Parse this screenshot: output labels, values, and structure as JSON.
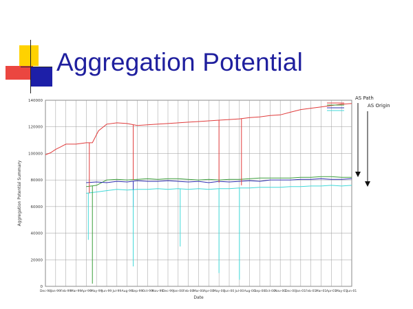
{
  "slide": {
    "title": "Aggregation Potential"
  },
  "chart_data": {
    "type": "line",
    "title": "",
    "xlabel": "Date",
    "ylabel": "Aggregation Potential Summary",
    "ylim": [
      0,
      140000
    ],
    "y_ticks": [
      "0",
      "20000",
      "40000",
      "60000",
      "80000",
      "100000",
      "120000",
      "140000"
    ],
    "x_ticks": [
      "Dec-98",
      "Jan-99",
      "Feb-99",
      "Mar-99",
      "Apr-99",
      "May-99",
      "Jun-99",
      "Jul-99",
      "Aug-99",
      "Sep-99",
      "Oct-99",
      "Nov-99",
      "Dec-99",
      "Jan-00",
      "Feb-00",
      "Mar-00",
      "Apr-00",
      "May-00",
      "Jun-00",
      "Jul-00",
      "Aug-00",
      "Sep-00",
      "Oct-00",
      "Nov-00",
      "Dec-00",
      "Jan-01",
      "Feb-01",
      "Mar-01",
      "Apr-01",
      "May-01",
      "Jun-01"
    ],
    "grid": true,
    "series": [
      {
        "color": "#e03a3a",
        "x": [
          0,
          0.5,
          1.0,
          1.5,
          2.0,
          2.5,
          3.0,
          3.5,
          4.0,
          4.6,
          5.2,
          6.0,
          7.0,
          8.0,
          9.0,
          10.0,
          11.0,
          12.0,
          13.0,
          14.0,
          15.0,
          16.0,
          17.0,
          18.0,
          19.0,
          20.0,
          21.0,
          22.0,
          23.0,
          24.0,
          25.0,
          26.0,
          27.0,
          28.0,
          29.0,
          30.0
        ],
        "y": [
          99000,
          100500,
          103000,
          105000,
          107000,
          107000,
          107000,
          107500,
          108000,
          108000,
          117000,
          122000,
          123000,
          122500,
          121000,
          121500,
          122000,
          122500,
          123000,
          123500,
          124000,
          124500,
          125000,
          125500,
          126000,
          127000,
          127500,
          128500,
          129000,
          131000,
          133000,
          134000,
          135000,
          136000,
          137000,
          137500
        ]
      },
      {
        "color": "#3a9e3a",
        "x": [
          4.0,
          5.0,
          6.0,
          7.0,
          8.0,
          9.0,
          10.0,
          11.0,
          12.0,
          13.0,
          14.0,
          15.0,
          16.0,
          17.0,
          18.0,
          19.0,
          20.0,
          21.0,
          22.0,
          23.0,
          24.0,
          25.0,
          26.0,
          27.0,
          28.0,
          29.0,
          30.0
        ],
        "y": [
          75000,
          76000,
          80000,
          80500,
          80000,
          80500,
          81000,
          80500,
          81000,
          81000,
          80500,
          80000,
          80500,
          80000,
          80500,
          80500,
          81000,
          81500,
          81500,
          81500,
          81500,
          82000,
          82000,
          82500,
          82500,
          82000,
          82000
        ]
      },
      {
        "color": "#2b2bb0",
        "x": [
          4.0,
          5.0,
          6.0,
          7.0,
          8.0,
          9.0,
          10.0,
          11.0,
          12.0,
          13.0,
          14.0,
          15.0,
          16.0,
          17.0,
          18.0,
          19.0,
          20.0,
          21.0,
          22.0,
          23.0,
          24.0,
          25.0,
          26.0,
          27.0,
          28.0,
          29.0,
          30.0
        ],
        "y": [
          78000,
          78500,
          78000,
          79000,
          78500,
          79500,
          79000,
          79000,
          79500,
          79000,
          78500,
          79000,
          78000,
          79000,
          78500,
          79000,
          79500,
          79000,
          80000,
          80000,
          80000,
          80500,
          80500,
          81000,
          80500,
          80500,
          81000
        ]
      },
      {
        "color": "#3fd8d8",
        "x": [
          4.0,
          5.0,
          6.0,
          7.0,
          8.0,
          9.0,
          10.0,
          11.0,
          12.0,
          13.0,
          14.0,
          15.0,
          16.0,
          17.0,
          18.0,
          19.0,
          20.0,
          21.0,
          22.0,
          23.0,
          24.0,
          25.0,
          26.0,
          27.0,
          28.0,
          29.0,
          30.0
        ],
        "y": [
          70000,
          71000,
          72000,
          73000,
          72500,
          73000,
          73000,
          73500,
          73000,
          73500,
          73000,
          73500,
          73000,
          73500,
          73500,
          74000,
          74000,
          74500,
          74500,
          74500,
          75000,
          75000,
          75500,
          75500,
          76000,
          75500,
          76000
        ]
      }
    ],
    "spikes": [
      {
        "color": "#e03a3a",
        "x": 4.3,
        "y": 70000
      },
      {
        "color": "#e03a3a",
        "x": 8.6,
        "y": 80000
      },
      {
        "color": "#e03a3a",
        "x": 17.0,
        "y": 78000
      },
      {
        "color": "#e03a3a",
        "x": 19.2,
        "y": 76000
      },
      {
        "color": "#3a9e3a",
        "x": 4.6,
        "y": 2000
      },
      {
        "color": "#2b2bb0",
        "x": 8.6,
        "y": 60000
      },
      {
        "color": "#3fd8d8",
        "x": 4.2,
        "y": 35000
      },
      {
        "color": "#3fd8d8",
        "x": 8.6,
        "y": 15000
      },
      {
        "color": "#3fd8d8",
        "x": 17.0,
        "y": 10000
      },
      {
        "color": "#3fd8d8",
        "x": 19.0,
        "y": 5000
      },
      {
        "color": "#3fd8d8",
        "x": 13.2,
        "y": 30000
      }
    ],
    "annotations": [
      {
        "label": "AS Path"
      },
      {
        "label": "AS Origin"
      }
    ]
  }
}
